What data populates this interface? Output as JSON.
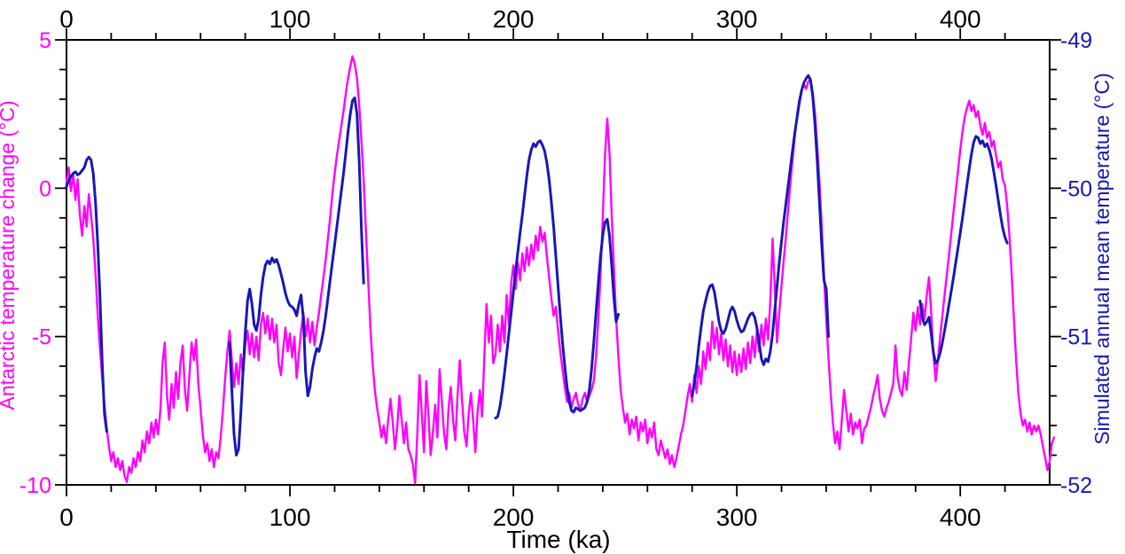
{
  "figure": {
    "background": "#FFFFFF",
    "axis_color": "#000000"
  },
  "chart_data": {
    "type": "line",
    "title": "",
    "xlabel": "Time (ka)",
    "x_range": [
      0,
      440
    ],
    "x_ticks_major": [
      0,
      100,
      200,
      300,
      400
    ],
    "x_tick_minor_step": 20,
    "grid": false,
    "legend_position": "none",
    "left_axis": {
      "label": "Antarctic temperature change (°C)",
      "color": "#FF00FF",
      "range": [
        -10,
        5
      ],
      "ticks": [
        5,
        0,
        -5,
        -10
      ],
      "minor_step": 1
    },
    "right_axis": {
      "label": "Simulated annual mean temperature (°C)",
      "color": "#1818B4",
      "range": [
        -52,
        -49
      ],
      "ticks": [
        -49,
        -50,
        -51,
        -52
      ],
      "minor_step": 0.2
    },
    "series": [
      {
        "name": "Antarctic temperature change (ice core record)",
        "axis": "left",
        "color": "#FF00FF",
        "line_width": 2.4,
        "x_start": 0,
        "x_step": 1,
        "values": [
          0.2,
          0.7,
          -0.1,
          0.5,
          -0.4,
          0.3,
          -0.9,
          -1.6,
          -0.6,
          -1.3,
          -0.2,
          -0.9,
          -1.7,
          -2.9,
          -4.3,
          -5.4,
          -6.4,
          -7.3,
          -8.1,
          -8.7,
          -9.2,
          -8.9,
          -9.4,
          -9.1,
          -9.5,
          -9.2,
          -9.7,
          -9.9,
          -9.4,
          -9.6,
          -9.1,
          -9.4,
          -8.9,
          -9.2,
          -8.5,
          -8.9,
          -8.2,
          -8.6,
          -7.9,
          -8.4,
          -7.8,
          -8.3,
          -7.5,
          -5.9,
          -5.2,
          -7.0,
          -7.8,
          -6.6,
          -7.4,
          -6.2,
          -7.1,
          -5.9,
          -5.3,
          -6.8,
          -7.5,
          -6.3,
          -5.2,
          -5.8,
          -5.1,
          -6.6,
          -7.4,
          -8.3,
          -8.9,
          -8.6,
          -9.2,
          -8.8,
          -9.4,
          -8.9,
          -9.1,
          -8.4,
          -7.5,
          -6.4,
          -5.5,
          -4.8,
          -5.8,
          -6.7,
          -5.9,
          -6.6,
          -5.6,
          -6.3,
          -5.3,
          -4.8,
          -5.6,
          -4.9,
          -5.7,
          -5.0,
          -5.8,
          -4.6,
          -4.2,
          -4.9,
          -4.3,
          -5.1,
          -4.4,
          -5.2,
          -4.6,
          -5.9,
          -6.3,
          -5.4,
          -4.7,
          -5.5,
          -4.9,
          -5.7,
          -5.0,
          -6.4,
          -5.6,
          -4.8,
          -4.2,
          -5.0,
          -4.4,
          -5.2,
          -4.5,
          -5.3,
          -4.7,
          -4.2,
          -3.6,
          -3.0,
          -2.4,
          -1.7,
          -1.0,
          -0.2,
          0.5,
          1.1,
          1.6,
          2.1,
          2.6,
          3.2,
          3.7,
          4.1,
          4.45,
          4.2,
          3.7,
          2.8,
          1.6,
          0.3,
          -1.4,
          -3.1,
          -4.7,
          -5.9,
          -6.8,
          -7.4,
          -7.9,
          -8.4,
          -8.0,
          -8.6,
          -7.8,
          -7.1,
          -7.9,
          -8.8,
          -8.1,
          -7.0,
          -7.8,
          -8.6,
          -7.9,
          -8.8,
          -9.0,
          -9.3,
          -9.95,
          -8.3,
          -6.3,
          -7.6,
          -8.9,
          -6.5,
          -7.7,
          -9.0,
          -8.2,
          -7.3,
          -8.4,
          -6.1,
          -7.2,
          -8.3,
          -8.8,
          -7.4,
          -6.7,
          -7.8,
          -8.5,
          -7.0,
          -5.8,
          -7.1,
          -8.2,
          -8.7,
          -7.6,
          -6.9,
          -7.8,
          -8.9,
          -7.5,
          -6.8,
          -7.7,
          -5.7,
          -3.9,
          -5.2,
          -4.3,
          -5.9,
          -5.6,
          -4.6,
          -5.5,
          -4.3,
          -5.2,
          -3.6,
          -4.6,
          -3.2,
          -2.6,
          -3.4,
          -2.5,
          -3.1,
          -2.2,
          -2.8,
          -2.0,
          -2.6,
          -1.9,
          -2.4,
          -1.6,
          -2.1,
          -1.3,
          -1.8,
          -1.5,
          -2.3,
          -3.0,
          -3.7,
          -4.3,
          -4.0,
          -4.8,
          -5.5,
          -6.1,
          -6.7,
          -7.2,
          -6.9,
          -7.4,
          -7.1,
          -6.9,
          -7.3,
          -7.5,
          -7.1,
          -6.9,
          -7.2,
          -7.0,
          -6.8,
          -6.5,
          -5.7,
          -4.4,
          -2.9,
          -1.0,
          1.1,
          2.35,
          1.2,
          -0.9,
          -2.7,
          -4.4,
          -5.7,
          -6.8,
          -7.4,
          -7.9,
          -7.6,
          -8.3,
          -7.8,
          -8.1,
          -7.7,
          -8.5,
          -7.9,
          -8.2,
          -7.8,
          -8.6,
          -8.1,
          -8.4,
          -7.9,
          -8.8,
          -9.0,
          -8.5,
          -8.8,
          -9.1,
          -8.8,
          -9.3,
          -9.0,
          -9.4,
          -9.1,
          -8.7,
          -8.3,
          -8.0,
          -7.5,
          -7.0,
          -6.6,
          -7.2,
          -6.3,
          -6.9,
          -6.0,
          -6.6,
          -5.5,
          -6.1,
          -5.2,
          -5.8,
          -4.5,
          -5.4,
          -4.7,
          -5.6,
          -4.9,
          -5.8,
          -5.1,
          -6.0,
          -5.3,
          -6.2,
          -5.5,
          -6.3,
          -5.6,
          -6.2,
          -5.4,
          -6.1,
          -5.2,
          -5.9,
          -5.0,
          -5.7,
          -4.8,
          -5.5,
          -4.6,
          -5.3,
          -4.4,
          -5.1,
          -3.8,
          -1.7,
          -3.4,
          -5.2,
          -4.2,
          -3.3,
          -2.4,
          -1.6,
          -0.7,
          0.2,
          1.0,
          1.8,
          2.5,
          3.0,
          3.3,
          3.5,
          3.35,
          3.6,
          3.65,
          3.2,
          2.5,
          1.4,
          0.2,
          -1.3,
          -2.9,
          -4.4,
          -5.7,
          -6.9,
          -7.9,
          -8.6,
          -8.2,
          -8.8,
          -7.8,
          -6.8,
          -7.5,
          -8.2,
          -7.6,
          -8.3,
          -7.9,
          -8.1,
          -7.8,
          -8.6,
          -8.1,
          -8.0,
          -7.7,
          -7.4,
          -7.0,
          -6.7,
          -6.3,
          -7.1,
          -7.5,
          -7.7,
          -7.4,
          -7.2,
          -6.9,
          -6.6,
          -5.3,
          -6.4,
          -6.8,
          -7.0,
          -6.2,
          -6.8,
          -5.9,
          -5.1,
          -4.2,
          -4.8,
          -4.0,
          -4.6,
          -3.9,
          -4.4,
          -3.6,
          -3.0,
          -4.2,
          -5.6,
          -6.5,
          -5.8,
          -5.0,
          -4.3,
          -3.6,
          -2.9,
          -2.2,
          -1.5,
          -0.8,
          -0.1,
          0.6,
          1.3,
          1.9,
          2.4,
          2.7,
          2.95,
          2.6,
          2.8,
          2.4,
          2.6,
          2.1,
          1.8,
          2.2,
          1.7,
          1.9,
          1.4,
          1.6,
          1.1,
          0.7,
          0.9,
          0.3,
          0.1,
          -0.6,
          -1.6,
          -2.9,
          -4.4,
          -5.8,
          -6.9,
          -7.6,
          -8.0,
          -7.8,
          -8.2,
          -7.9,
          -8.3,
          -8.0,
          -8.2,
          -8.0,
          -8.3,
          -8.7,
          -9.1,
          -9.5,
          -9.2,
          -8.6,
          -8.4
        ]
      },
      {
        "name": "Simulated annual mean temperature",
        "axis": "right",
        "color": "#1818B4",
        "line_width": 3,
        "segments": [
          {
            "x_start": 0,
            "x_step": 1,
            "values": [
              -49.99,
              -49.95,
              -49.92,
              -49.9,
              -49.89,
              -49.91,
              -49.9,
              -49.88,
              -49.86,
              -49.81,
              -49.79,
              -49.81,
              -49.9,
              -50.1,
              -50.38,
              -50.74,
              -51.18,
              -51.52,
              -51.64
            ]
          },
          {
            "x_start": 73,
            "x_step": 1,
            "values": [
              -51.04,
              -51.36,
              -51.66,
              -51.8,
              -51.76,
              -51.52,
              -51.24,
              -50.98,
              -50.76,
              -50.68,
              -50.78,
              -50.92,
              -50.96,
              -50.88,
              -50.72,
              -50.6,
              -50.52,
              -50.49,
              -50.51,
              -50.47,
              -50.5,
              -50.48,
              -50.52,
              -50.58,
              -50.64,
              -50.71,
              -50.76,
              -50.79,
              -50.8,
              -50.82,
              -50.86,
              -50.78,
              -50.72,
              -50.88,
              -51.24,
              -51.4,
              -51.34,
              -51.22,
              -51.14,
              -51.08,
              -51.1,
              -51.04,
              -50.96,
              -50.86,
              -50.74,
              -50.62,
              -50.5,
              -50.38,
              -50.26,
              -50.14,
              -50.02,
              -49.9,
              -49.76,
              -49.62,
              -49.5,
              -49.41,
              -49.39,
              -49.5,
              -49.82,
              -50.28,
              -50.64
            ]
          },
          {
            "x_start": 192,
            "x_step": 1,
            "values": [
              -51.55,
              -51.54,
              -51.47,
              -51.37,
              -51.25,
              -51.12,
              -50.98,
              -50.84,
              -50.7,
              -50.56,
              -50.43,
              -50.3,
              -50.18,
              -50.05,
              -49.92,
              -49.81,
              -49.74,
              -49.7,
              -49.72,
              -49.69,
              -49.68,
              -49.71,
              -49.75,
              -49.83,
              -49.94,
              -50.09,
              -50.26,
              -50.46,
              -50.66,
              -50.86,
              -51.04,
              -51.2,
              -51.34,
              -51.44,
              -51.5,
              -51.51,
              -51.48,
              -51.49,
              -51.5,
              -51.49,
              -51.48,
              -51.44,
              -51.36,
              -51.22,
              -51.04,
              -50.84,
              -50.64,
              -50.46,
              -50.32,
              -50.23,
              -50.21,
              -50.32,
              -50.52,
              -50.74,
              -50.9,
              -50.85
            ]
          },
          {
            "x_start": 280,
            "x_step": 1,
            "values": [
              -51.4,
              -51.32,
              -51.2,
              -51.06,
              -50.94,
              -50.83,
              -50.76,
              -50.7,
              -50.66,
              -50.65,
              -50.7,
              -50.8,
              -50.9,
              -50.96,
              -50.98,
              -50.95,
              -50.89,
              -50.83,
              -50.8,
              -50.83,
              -50.89,
              -50.94,
              -50.97,
              -50.96,
              -50.92,
              -50.88,
              -50.85,
              -50.84,
              -50.87,
              -50.94,
              -51.04,
              -51.15,
              -51.19,
              -51.15,
              -51.17,
              -51.1,
              -50.98,
              -50.82,
              -50.66,
              -50.5,
              -50.36,
              -50.22,
              -50.1,
              -49.98,
              -49.86,
              -49.74,
              -49.62,
              -49.52,
              -49.42,
              -49.34,
              -49.29,
              -49.26,
              -49.24,
              -49.27,
              -49.38,
              -49.58,
              -49.82,
              -50.1,
              -50.38,
              -50.62,
              -50.68,
              -51.0
            ]
          },
          {
            "x_start": 382,
            "x_step": 1,
            "values": [
              -50.76,
              -50.87,
              -50.92,
              -50.9,
              -50.87,
              -50.98,
              -51.11,
              -51.18,
              -51.16,
              -51.11,
              -51.04,
              -50.96,
              -50.87,
              -50.78,
              -50.69,
              -50.6,
              -50.5,
              -50.4,
              -50.3,
              -50.2,
              -50.09,
              -49.98,
              -49.87,
              -49.77,
              -49.69,
              -49.65,
              -49.66,
              -49.7,
              -49.68,
              -49.72,
              -49.7,
              -49.74,
              -49.8,
              -49.89,
              -49.98,
              -50.08,
              -50.18,
              -50.27,
              -50.33,
              -50.37
            ]
          }
        ]
      }
    ]
  }
}
